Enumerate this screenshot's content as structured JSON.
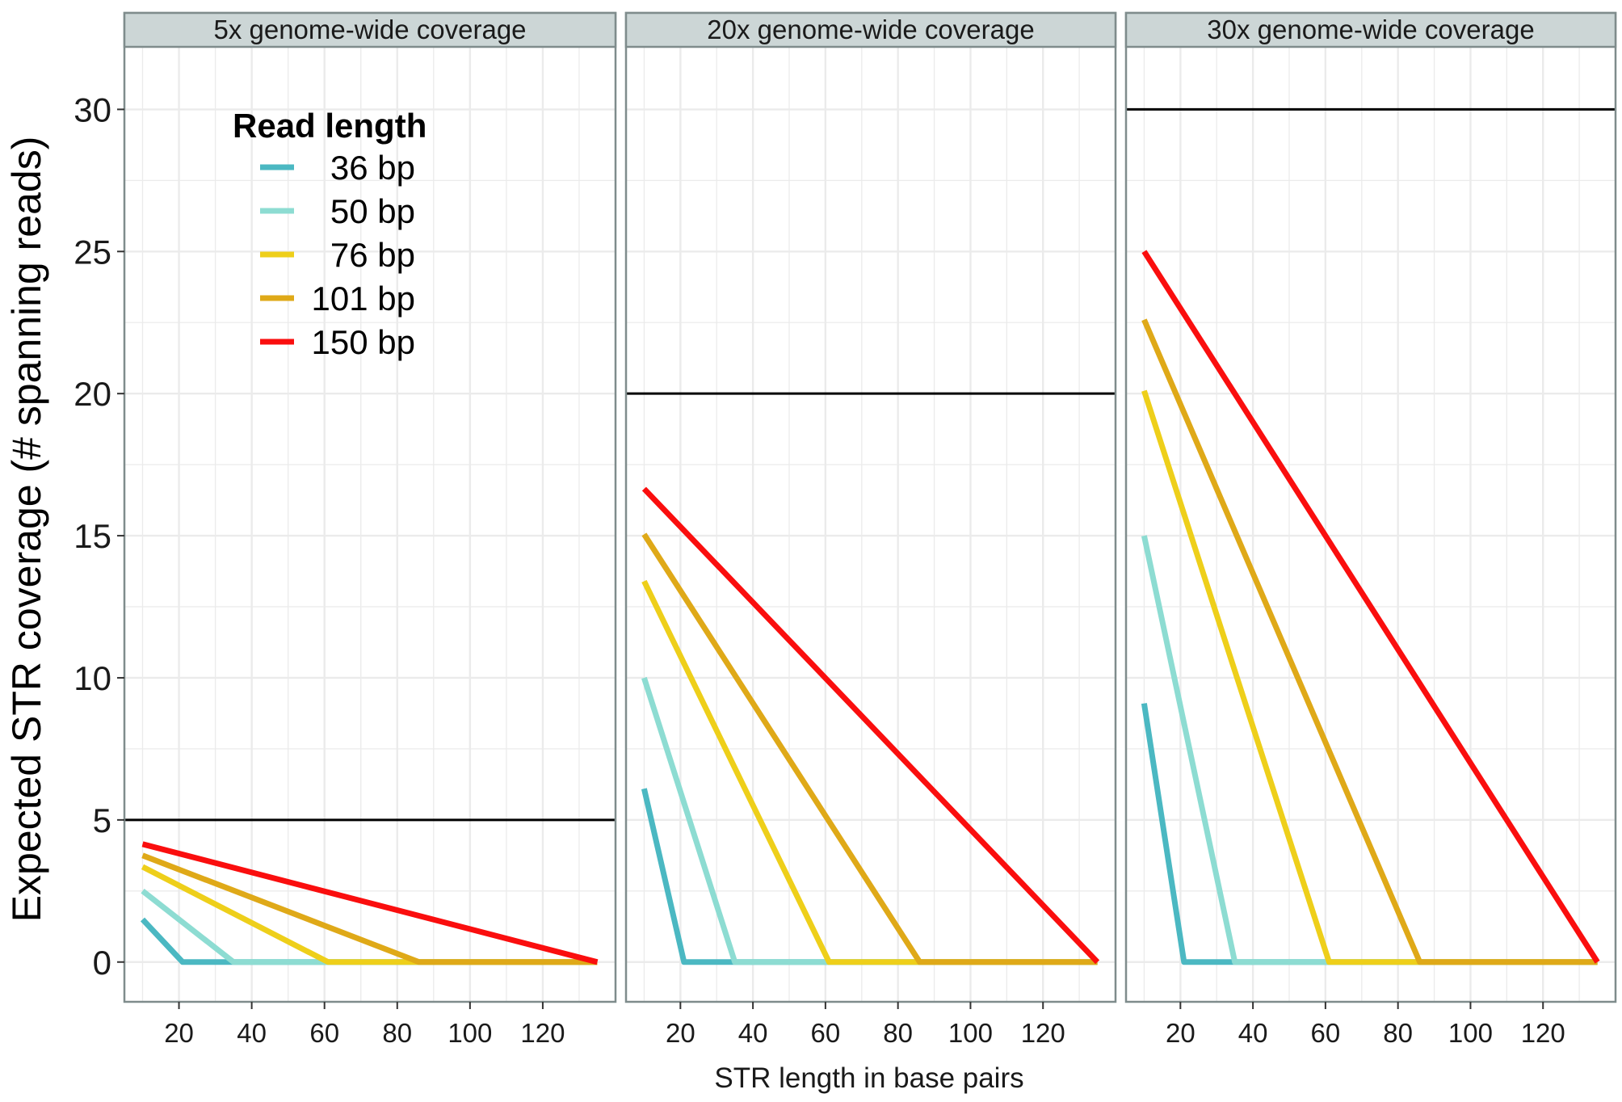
{
  "chart_data": {
    "type": "line",
    "ylabel": "Expected STR coverage (# spanning reads)",
    "xlabel": "STR length in base pairs",
    "xlim": [
      5,
      140
    ],
    "ylim": [
      -1.4,
      32.2
    ],
    "x_ticks": [
      20,
      40,
      60,
      80,
      100,
      120
    ],
    "y_ticks": [
      0,
      5,
      10,
      15,
      20,
      25,
      30
    ],
    "grid": true,
    "legend": {
      "title": "Read length",
      "placement": "top-left, inside first panel"
    },
    "colors": {
      "36 bp": "#4bb8c2",
      "50 bp": "#8ddcd2",
      "76 bp": "#eecf1a",
      "101 bp": "#dfa918",
      "150 bp": "#fa0e0e",
      "reference_line": "#000000",
      "strip_background": "#ccd6d6",
      "panel_border": "#7f8c8c",
      "grid": "#ebebeb"
    },
    "series_names": [
      "36 bp",
      "50 bp",
      "76 bp",
      "101 bp",
      "150 bp"
    ],
    "panels": [
      {
        "strip": "5x genome-wide coverage",
        "reference": 5,
        "series": [
          {
            "name": "36 bp",
            "x": [
              10,
              21,
              135
            ],
            "y": [
              1.5,
              0,
              0
            ]
          },
          {
            "name": "50 bp",
            "x": [
              10,
              35,
              135
            ],
            "y": [
              2.5,
              0,
              0
            ]
          },
          {
            "name": "76 bp",
            "x": [
              10,
              61,
              135
            ],
            "y": [
              3.35,
              0,
              0
            ]
          },
          {
            "name": "101 bp",
            "x": [
              10,
              86,
              135
            ],
            "y": [
              3.75,
              0,
              0
            ]
          },
          {
            "name": "150 bp",
            "x": [
              10,
              135
            ],
            "y": [
              4.15,
              0
            ]
          }
        ]
      },
      {
        "strip": "20x genome-wide coverage",
        "reference": 20,
        "series": [
          {
            "name": "36 bp",
            "x": [
              10,
              21,
              135
            ],
            "y": [
              6.1,
              0,
              0
            ]
          },
          {
            "name": "50 bp",
            "x": [
              10,
              35,
              135
            ],
            "y": [
              10.0,
              0,
              0
            ]
          },
          {
            "name": "76 bp",
            "x": [
              10,
              61,
              135
            ],
            "y": [
              13.4,
              0,
              0
            ]
          },
          {
            "name": "101 bp",
            "x": [
              10,
              86,
              135
            ],
            "y": [
              15.05,
              0,
              0
            ]
          },
          {
            "name": "150 bp",
            "x": [
              10,
              135
            ],
            "y": [
              16.65,
              0
            ]
          }
        ]
      },
      {
        "strip": "30x genome-wide coverage",
        "reference": 30,
        "series": [
          {
            "name": "36 bp",
            "x": [
              10,
              21,
              135
            ],
            "y": [
              9.1,
              0,
              0
            ]
          },
          {
            "name": "50 bp",
            "x": [
              10,
              35,
              135
            ],
            "y": [
              15.0,
              0,
              0
            ]
          },
          {
            "name": "76 bp",
            "x": [
              10,
              61,
              135
            ],
            "y": [
              20.1,
              0,
              0
            ]
          },
          {
            "name": "101 bp",
            "x": [
              10,
              86,
              135
            ],
            "y": [
              22.6,
              0,
              0
            ]
          },
          {
            "name": "150 bp",
            "x": [
              10,
              135
            ],
            "y": [
              25.0,
              0
            ]
          }
        ]
      }
    ]
  }
}
